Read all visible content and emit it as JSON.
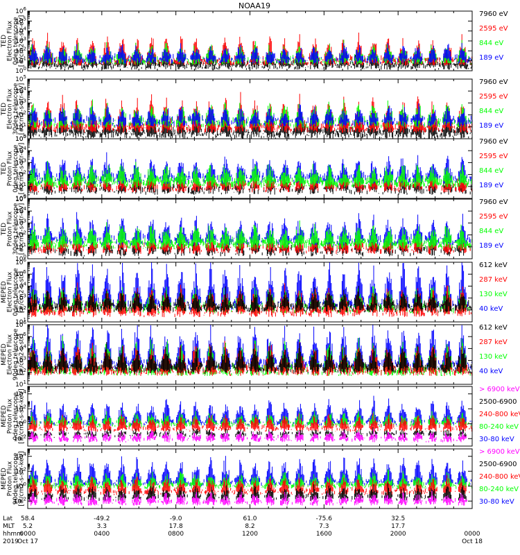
{
  "title": "NOAA19",
  "colors": {
    "black": "#000000",
    "red": "#ff0000",
    "green": "#00ff00",
    "blue": "#0000ff",
    "magenta": "#ff00ff"
  },
  "chart_data": [
    {
      "type": "line",
      "title": "NOAA19",
      "ylabel": [
        "TED",
        "Electron Flux",
        "0deg telescope",
        "[#/cm2-s-str-eV]"
      ],
      "scale": "log",
      "ylim_exp": [
        0,
        6
      ],
      "yticks_exp": [
        0,
        1,
        2,
        3,
        4,
        5,
        6
      ],
      "series": [
        {
          "name": "7960 eV",
          "color": "#000000",
          "base_exp": 0.4,
          "pulse_exp": 1.6,
          "density": 0.85
        },
        {
          "name": "2595 eV",
          "color": "#ff0000",
          "base_exp": 0.8,
          "pulse_exp": 2.2,
          "density": 0.7
        },
        {
          "name": "844 eV",
          "color": "#00ff00",
          "base_exp": 0.9,
          "pulse_exp": 1.4,
          "density": 0.45
        },
        {
          "name": "189 eV",
          "color": "#0000ff",
          "base_exp": 1.0,
          "pulse_exp": 1.2,
          "density": 0.4
        }
      ]
    },
    {
      "type": "line",
      "ylabel": [
        "TED",
        "Electron Flux",
        "30deg telescope",
        "[#/cm2-s-str-eV]"
      ],
      "scale": "log",
      "ylim_exp": [
        0,
        5
      ],
      "yticks_exp": [
        0,
        1,
        2,
        3,
        4,
        5
      ],
      "series": [
        {
          "name": "7960 eV",
          "color": "#000000",
          "base_exp": 0.3,
          "pulse_exp": 1.7,
          "density": 0.85
        },
        {
          "name": "2595 eV",
          "color": "#ff0000",
          "base_exp": 0.8,
          "pulse_exp": 2.3,
          "density": 0.7
        },
        {
          "name": "844 eV",
          "color": "#00ff00",
          "base_exp": 1.2,
          "pulse_exp": 1.4,
          "density": 0.45
        },
        {
          "name": "189 eV",
          "color": "#0000ff",
          "base_exp": 1.3,
          "pulse_exp": 1.0,
          "density": 0.4
        }
      ]
    },
    {
      "type": "line",
      "ylabel": [
        "TED",
        "Proton Flux",
        "0deg telescope",
        "[#/cm2-s-str-eV]"
      ],
      "scale": "log",
      "ylim_exp": [
        0,
        5
      ],
      "yticks_exp": [
        0,
        1,
        2,
        3,
        4,
        5
      ],
      "series": [
        {
          "name": "7960 eV",
          "color": "#000000",
          "base_exp": 0.6,
          "pulse_exp": 0.8,
          "density": 0.25
        },
        {
          "name": "2595 eV",
          "color": "#ff0000",
          "base_exp": 0.8,
          "pulse_exp": 0.9,
          "density": 0.3
        },
        {
          "name": "189 eV",
          "color": "#0000ff",
          "base_exp": 1.5,
          "pulse_exp": 1.6,
          "density": 0.7
        },
        {
          "name": "844 eV",
          "color": "#00ff00",
          "base_exp": 1.2,
          "pulse_exp": 1.3,
          "density": 0.95
        }
      ]
    },
    {
      "type": "line",
      "ylabel": [
        "TED",
        "Proton Flux",
        "30deg telescope",
        "[#/cm2-s-str-eV]"
      ],
      "scale": "log",
      "ylim_exp": [
        0,
        5
      ],
      "yticks_exp": [
        0,
        1,
        2,
        3,
        4,
        5
      ],
      "series": [
        {
          "name": "7960 eV",
          "color": "#000000",
          "base_exp": 0.5,
          "pulse_exp": 0.7,
          "density": 0.2
        },
        {
          "name": "2595 eV",
          "color": "#ff0000",
          "base_exp": 0.7,
          "pulse_exp": 0.8,
          "density": 0.25
        },
        {
          "name": "189 eV",
          "color": "#0000ff",
          "base_exp": 1.4,
          "pulse_exp": 1.7,
          "density": 0.6
        },
        {
          "name": "844 eV",
          "color": "#00ff00",
          "base_exp": 1.1,
          "pulse_exp": 1.4,
          "density": 0.95
        }
      ]
    },
    {
      "type": "line",
      "ylabel": [
        "MEPED",
        "Electron Flux",
        "0deg telescope",
        "[#/cm2-s-str]"
      ],
      "scale": "log",
      "ylim_exp": [
        1,
        6
      ],
      "yticks_exp": [
        1,
        2,
        3,
        4,
        5,
        6
      ],
      "series": [
        {
          "name": "40 keV",
          "color": "#0000ff",
          "base_exp": 2.3,
          "pulse_exp": 3.2,
          "density": 0.55
        },
        {
          "name": "130 keV",
          "color": "#00ff00",
          "base_exp": 2.0,
          "pulse_exp": 1.6,
          "density": 0.5
        },
        {
          "name": "287 keV",
          "color": "#ff0000",
          "base_exp": 1.7,
          "pulse_exp": 1.8,
          "density": 0.4
        },
        {
          "name": "612 keV",
          "color": "#000000",
          "base_exp": 2.1,
          "pulse_exp": 1.2,
          "density": 0.8
        }
      ]
    },
    {
      "type": "line",
      "ylabel": [
        "MEPED",
        "Electron Flux",
        "90deg telescope",
        "[#/cm2-s-str]"
      ],
      "scale": "log",
      "ylim_exp": [
        1,
        6
      ],
      "yticks_exp": [
        1,
        2,
        3,
        4,
        5,
        6
      ],
      "series": [
        {
          "name": "40 keV",
          "color": "#0000ff",
          "base_exp": 2.5,
          "pulse_exp": 3.0,
          "density": 0.75
        },
        {
          "name": "130 keV",
          "color": "#00ff00",
          "base_exp": 2.0,
          "pulse_exp": 2.2,
          "density": 0.65
        },
        {
          "name": "287 keV",
          "color": "#ff0000",
          "base_exp": 2.0,
          "pulse_exp": 2.0,
          "density": 0.6
        },
        {
          "name": "612 keV",
          "color": "#000000",
          "base_exp": 2.2,
          "pulse_exp": 1.6,
          "density": 0.75
        }
      ]
    },
    {
      "type": "line",
      "ylabel": [
        "MEPED",
        "Proton Flux",
        "0deg telescope",
        "[#/cm2-s-str-keV]"
      ],
      "scale": "log",
      "ylim_exp": [
        -3,
        5
      ],
      "yticks_exp": [
        -2,
        0,
        2,
        4
      ],
      "series": [
        {
          "name": "30-80 keV",
          "color": "#0000ff",
          "base_exp": 0.0,
          "pulse_exp": 2.8,
          "density": 0.55
        },
        {
          "name": "80-240 keV",
          "color": "#00ff00",
          "base_exp": -0.2,
          "pulse_exp": 1.4,
          "density": 0.5
        },
        {
          "name": "240-800 keV",
          "color": "#ff0000",
          "base_exp": -0.8,
          "pulse_exp": 1.6,
          "density": 0.4
        },
        {
          "name": "2500-6900",
          "color": "#000000",
          "base_exp": -1.6,
          "pulse_exp": 0.4,
          "density": 0.15
        },
        {
          "name": "> 6900 keV",
          "color": "#ff00ff",
          "base_exp": -2.2,
          "pulse_exp": 0.8,
          "density": 0.15
        }
      ]
    },
    {
      "type": "line",
      "ylabel": [
        "MEPED",
        "Proton Flux",
        "90deg telescope",
        "[#/cm2-s-str-keV]"
      ],
      "scale": "log",
      "ylim_exp": [
        -3,
        5
      ],
      "yticks_exp": [
        -2,
        0,
        2,
        4
      ],
      "series": [
        {
          "name": "30-80 keV",
          "color": "#0000ff",
          "base_exp": 0.3,
          "pulse_exp": 3.1,
          "density": 0.65
        },
        {
          "name": "80-240 keV",
          "color": "#00ff00",
          "base_exp": -0.1,
          "pulse_exp": 1.6,
          "density": 0.55
        },
        {
          "name": "240-800 keV",
          "color": "#ff0000",
          "base_exp": -0.9,
          "pulse_exp": 1.7,
          "density": 0.45
        },
        {
          "name": "2500-6900",
          "color": "#000000",
          "base_exp": -1.7,
          "pulse_exp": 1.4,
          "density": 0.2
        },
        {
          "name": "> 6900 keV",
          "color": "#ff00ff",
          "base_exp": -2.3,
          "pulse_exp": 1.0,
          "density": 0.2
        }
      ]
    }
  ],
  "x_axis": {
    "row_labels": [
      "Lat",
      "MLT",
      "hhmm",
      "2019"
    ],
    "ticks": [
      {
        "lat": "58.4",
        "mlt": "5.2",
        "hhmm": "0000",
        "date": "Oct 17"
      },
      {
        "lat": "-49.2",
        "mlt": "3.3",
        "hhmm": "0400",
        "date": ""
      },
      {
        "lat": "-9.0",
        "mlt": "17.8",
        "hhmm": "0800",
        "date": ""
      },
      {
        "lat": "61.0",
        "mlt": "8.2",
        "hhmm": "1200",
        "date": ""
      },
      {
        "lat": "-75.6",
        "mlt": "7.3",
        "hhmm": "1600",
        "date": ""
      },
      {
        "lat": "32.5",
        "mlt": "17.7",
        "hhmm": "2000",
        "date": ""
      },
      {
        "lat": "",
        "mlt": "",
        "hhmm": "0000",
        "date": "Oct 18"
      }
    ]
  }
}
